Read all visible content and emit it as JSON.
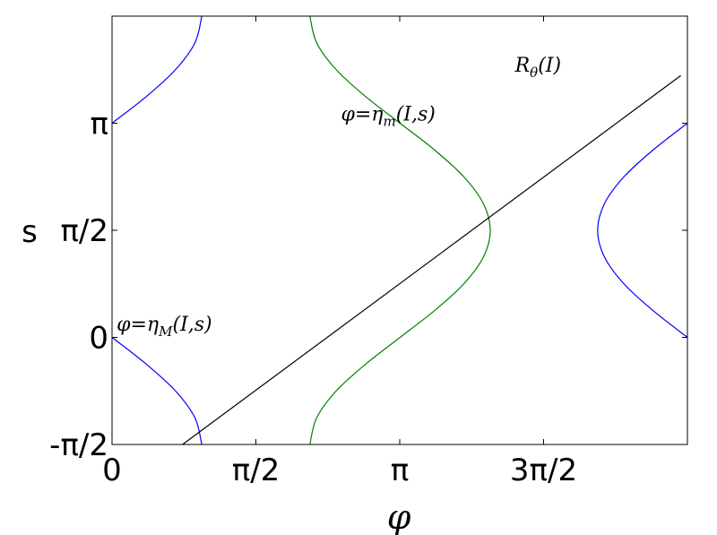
{
  "chart_data": {
    "type": "line",
    "xlabel": "φ",
    "ylabel": "s",
    "xlim": [
      0,
      6.2832
    ],
    "ylim": [
      -1.5708,
      4.7124
    ],
    "xticks": [
      0,
      {
        "value": 1.5708,
        "label": "π/2"
      },
      {
        "value": 3.1416,
        "label": "π"
      },
      {
        "value": 4.7124,
        "label": "3π/2"
      }
    ],
    "yticks": [
      {
        "value": -1.5708,
        "label": "-π/2"
      },
      0,
      {
        "value": 1.5708,
        "label": "π/2"
      },
      {
        "value": 3.1416,
        "label": "π"
      }
    ],
    "series": [
      {
        "color": "#0000ff",
        "x": [
          0.98,
          0.905,
          0.693,
          0.375,
          0
        ],
        "values": [
          -1.571,
          -1.178,
          -0.785,
          -0.393,
          0
        ]
      },
      {
        "color": "#0000ff",
        "x": [
          0,
          0.375,
          0.693,
          0.905,
          0.98
        ],
        "values": [
          3.142,
          3.534,
          3.927,
          4.32,
          4.712
        ]
      },
      {
        "color": "#0000ff",
        "x": [
          6.283,
          5.908,
          5.59,
          5.378,
          5.303,
          5.378,
          5.59,
          5.908,
          6.283
        ],
        "values": [
          0,
          0.393,
          0.785,
          1.178,
          1.571,
          1.963,
          2.356,
          2.749,
          3.142
        ]
      },
      {
        "color": "#008000",
        "x": [
          2.16,
          2.235,
          2.448,
          2.768,
          3.145,
          3.522,
          3.841,
          4.055,
          4.13,
          4.055,
          3.841,
          3.522,
          3.145,
          2.768,
          2.448,
          2.235,
          2.16
        ],
        "values": [
          -1.571,
          -1.178,
          -0.785,
          -0.393,
          0,
          0.393,
          0.785,
          1.178,
          1.571,
          1.963,
          2.356,
          2.749,
          3.142,
          3.534,
          3.927,
          4.32,
          4.712
        ]
      },
      {
        "color": "#000000",
        "x": [
          0.77,
          6.21
        ],
        "values": [
          -1.571,
          3.84
        ]
      }
    ],
    "annotations": [
      {
        "text": "φ=η",
        "sub": "M",
        "rest": "(I,s)",
        "x": 0.05,
        "y": 0.1
      },
      {
        "text": "φ=η",
        "sub": "m",
        "rest": "(I,s)",
        "x": 2.5,
        "y": 3.18
      },
      {
        "text": "R",
        "sub": "θ",
        "rest": "(I)",
        "x": 4.4,
        "y": 3.9
      }
    ]
  }
}
